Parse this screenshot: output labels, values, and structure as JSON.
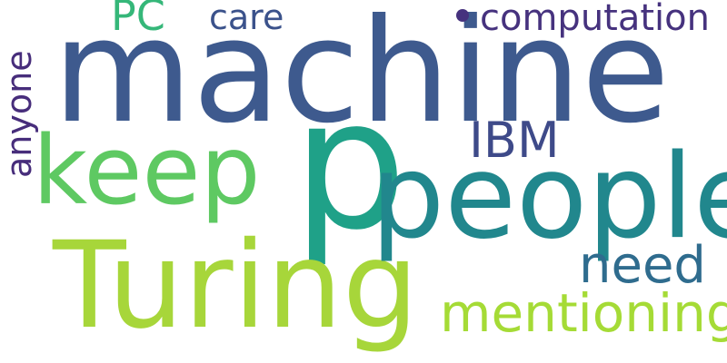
{
  "words": {
    "machine": {
      "text": "machine",
      "color": "#3e5a8e"
    },
    "p": {
      "text": "p",
      "color": "#1fa188"
    },
    "turing": {
      "text": "Turing",
      "color": "#a7d63a"
    },
    "people": {
      "text": "people",
      "color": "#21878d"
    },
    "keep": {
      "text": "keep",
      "color": "#5ec962"
    },
    "ibm": {
      "text": "IBM",
      "color": "#3e4a89"
    },
    "need": {
      "text": "need",
      "color": "#2f6c8e"
    },
    "mentioning": {
      "text": "mentioning",
      "color": "#a5db36"
    },
    "computation": {
      "text": "computation",
      "color": "#46327e"
    },
    "care": {
      "text": "care",
      "color": "#3b528b"
    },
    "pc": {
      "text": "PC",
      "color": "#35b779"
    },
    "anyone": {
      "text": "anyone",
      "color": "#472d7b"
    }
  },
  "decor": {
    "dot_color": "#46327e"
  },
  "background_color": "#ffffff"
}
